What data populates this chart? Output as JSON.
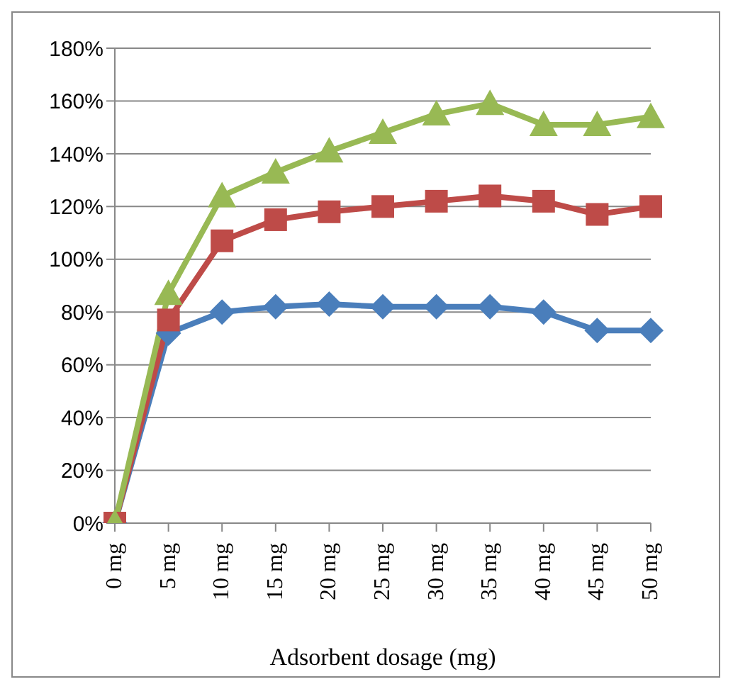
{
  "chart_data": {
    "type": "line",
    "xlabel": "Adsorbent dosage (mg)",
    "categories": [
      "0 mg",
      "5 mg",
      "10 mg",
      "15 mg",
      "20 mg",
      "25 mg",
      "30 mg",
      "35 mg",
      "40 mg",
      "45 mg",
      "50 mg"
    ],
    "series": [
      {
        "color": "#4a7ebb",
        "marker": "diamond",
        "values": [
          0,
          72,
          80,
          82,
          83,
          82,
          82,
          82,
          80,
          73,
          73
        ]
      },
      {
        "color": "#be4b48",
        "marker": "square",
        "values": [
          0,
          77,
          107,
          115,
          118,
          120,
          122,
          124,
          122,
          117,
          120
        ]
      },
      {
        "color": "#98b954",
        "marker": "triangle",
        "values": [
          0,
          87,
          124,
          133,
          141,
          148,
          155,
          159,
          151,
          151,
          154
        ]
      }
    ],
    "ylim": [
      0,
      180
    ],
    "yticks": [
      {
        "value": 0,
        "label": "0%"
      },
      {
        "value": 20,
        "label": "20%"
      },
      {
        "value": 40,
        "label": "40%"
      },
      {
        "value": 60,
        "label": "60%"
      },
      {
        "value": 80,
        "label": "80%"
      },
      {
        "value": 100,
        "label": "100%"
      },
      {
        "value": 120,
        "label": "120%"
      },
      {
        "value": 140,
        "label": "140%"
      },
      {
        "value": 160,
        "label": "160%"
      },
      {
        "value": 180,
        "label": "180%"
      }
    ],
    "grid": "y",
    "legend": false,
    "line_style": "solid"
  }
}
